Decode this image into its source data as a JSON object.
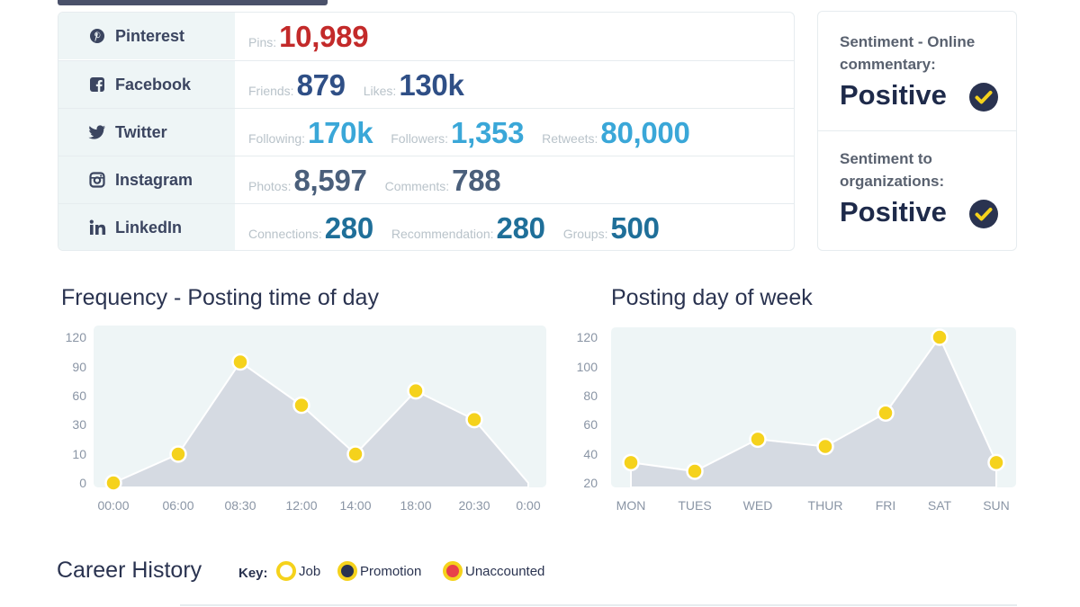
{
  "social": [
    {
      "name": "Pinterest",
      "icon": "pinterest-icon",
      "stats": [
        {
          "label": "Pins:",
          "value": "10,989",
          "color": "#c32a2a"
        }
      ]
    },
    {
      "name": "Facebook",
      "icon": "facebook-icon",
      "stats": [
        {
          "label": "Friends:",
          "value": "879",
          "color": "#2f4f86"
        },
        {
          "label": "Likes:",
          "value": "130k",
          "color": "#2f4f86"
        }
      ]
    },
    {
      "name": "Twitter",
      "icon": "twitter-icon",
      "stats": [
        {
          "label": "Following:",
          "value": "170k",
          "color": "#3aa7d8"
        },
        {
          "label": "Followers:",
          "value": "1,353",
          "color": "#3aa7d8"
        },
        {
          "label": "Retweets:",
          "value": "80,000",
          "color": "#3aa7d8"
        }
      ]
    },
    {
      "name": "Instagram",
      "icon": "instagram-icon",
      "stats": [
        {
          "label": "Photos:",
          "value": "8,597",
          "color": "#4a5f7b"
        },
        {
          "label": "Comments:",
          "value": "788",
          "color": "#4a5f7b"
        }
      ]
    },
    {
      "name": "LinkedIn",
      "icon": "linkedin-icon",
      "stats": [
        {
          "label": "Connections:",
          "value": "280",
          "color": "#1f6f99"
        },
        {
          "label": "Recommendation:",
          "value": "280",
          "color": "#1f6f99"
        },
        {
          "label": "Groups:",
          "value": "500",
          "color": "#1f6f99"
        }
      ]
    }
  ],
  "sentiment": [
    {
      "label_line1": "Sentiment - Online",
      "label_line2": "commentary:",
      "value": "Positive"
    },
    {
      "label_line1": "Sentiment to",
      "label_line2": "organizations:",
      "value": "Positive"
    }
  ],
  "colors": {
    "check_bg": "#2a3350",
    "check_mark": "#f5d21c",
    "point": "#f5d21c",
    "area": "#d5dae2",
    "plot_bg": "#eef5f6"
  },
  "chart_data": [
    {
      "type": "area",
      "title": "Frequency - Posting time of day",
      "categories": [
        "00:00",
        "06:00",
        "08:30",
        "12:00",
        "14:00",
        "18:00",
        "20:30",
        "0:00"
      ],
      "yticks": [
        "120",
        "90",
        "60",
        "30",
        "10",
        "0"
      ],
      "values": [
        0,
        10,
        95,
        50,
        10,
        65,
        35,
        null
      ],
      "end_value": 0,
      "grid": false,
      "legend": "none"
    },
    {
      "type": "area",
      "title": "Posting day of week",
      "categories": [
        "MON",
        "TUES",
        "WED",
        "THUR",
        "FRI",
        "SAT",
        "SUN"
      ],
      "yticks": [
        "120",
        "100",
        "80",
        "60",
        "40",
        "20"
      ],
      "values": [
        34,
        28,
        50,
        45,
        68,
        120,
        34
      ],
      "grid": false,
      "legend": "none"
    }
  ],
  "career": {
    "title": "Career History",
    "key_label": "Key:",
    "items": [
      {
        "label": "Job",
        "fill": "#ffffff"
      },
      {
        "label": "Promotion",
        "fill": "#2a3350"
      },
      {
        "label": "Unaccounted",
        "fill": "#e8404a"
      }
    ]
  }
}
